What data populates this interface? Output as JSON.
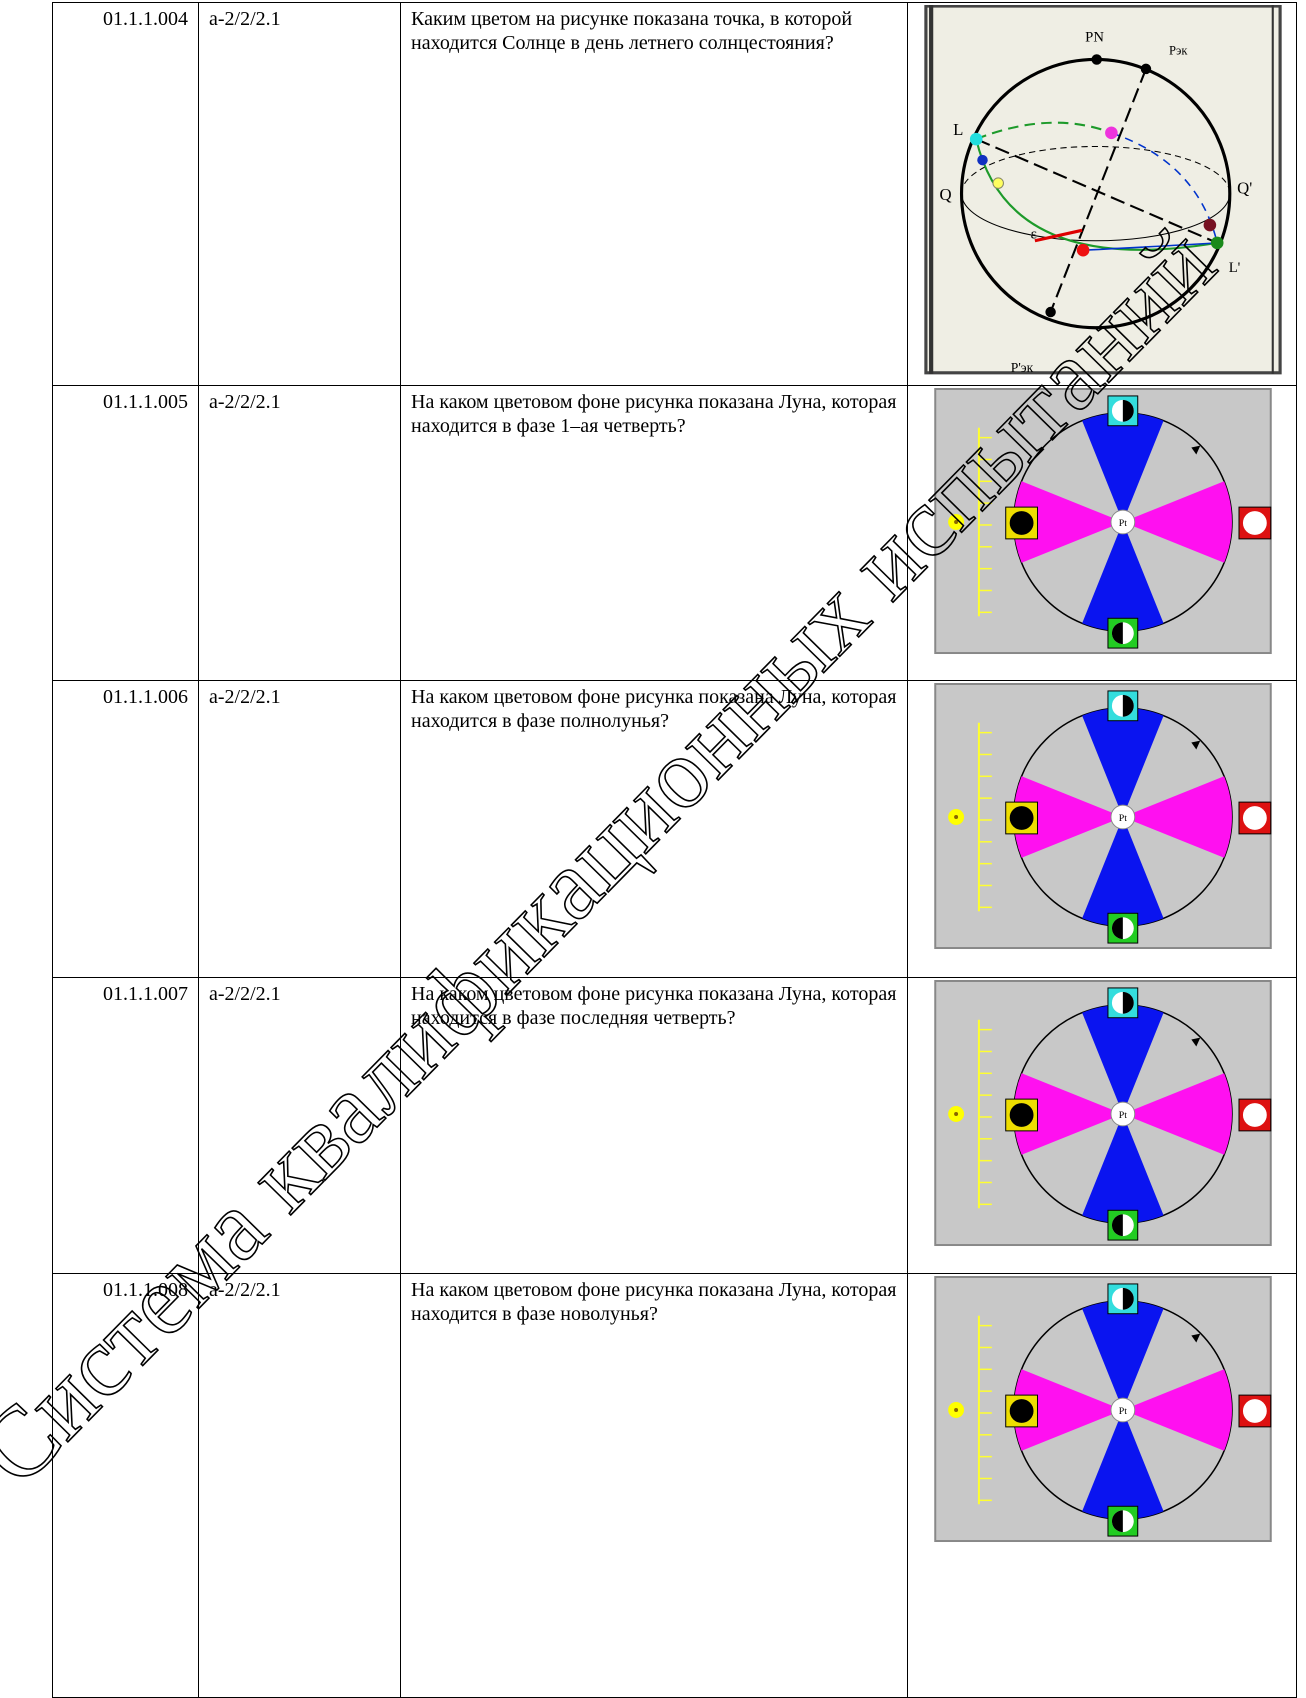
{
  "table": {
    "rows": [
      {
        "id": "01.1.1.004",
        "code": "a-2/2/2.1",
        "question": "Каким цветом на рисунке показана точка, в которой находится Солнце в день летнего солнцестояния?"
      },
      {
        "id": "01.1.1.005",
        "code": "a-2/2/2.1",
        "question": "На каком цветовом фоне рисунка показана Луна, которая находится в фазе 1–ая четверть?"
      },
      {
        "id": "01.1.1.006",
        "code": "a-2/2/2.1",
        "question": "На каком цветовом фоне рисунка показана Луна, которая находится в фазе полнолунья?"
      },
      {
        "id": "01.1.1.007",
        "code": "a-2/2/2.1",
        "question": "На каком цветовом фоне рисунка показана Луна, которая находится в фазе последняя четверть?"
      },
      {
        "id": "01.1.1.008",
        "code": "a-2/2/2.1",
        "question": "На каком цветовом фоне рисунка показана Луна, которая находится в фазе новолунья?"
      }
    ]
  },
  "figures": {
    "sphere_labels": {
      "pn": "PN",
      "pek": "Pэк",
      "l": "L",
      "q": "Q",
      "q2": "Q'",
      "l2": "L'",
      "pek2": "P'эк",
      "eps": "ε"
    },
    "moon_center_label": "Pt"
  },
  "watermark": "Система квалификационных испытаний"
}
